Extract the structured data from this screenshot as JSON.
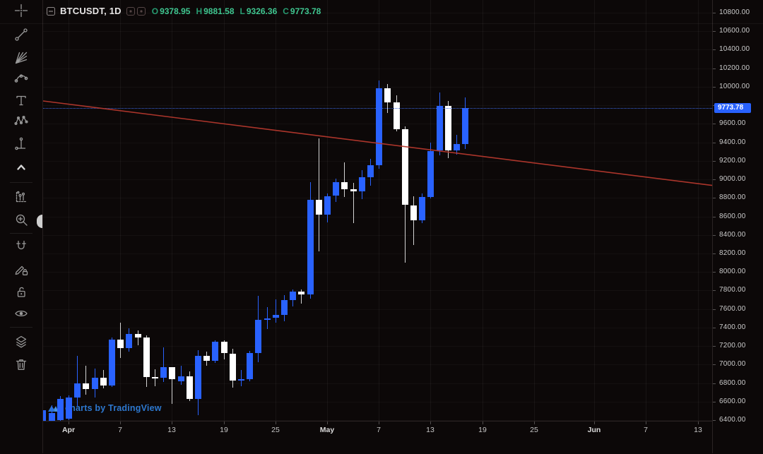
{
  "legend": {
    "symbol_title": "BTCUSDT, 1D",
    "ohlc": {
      "o_label": "O",
      "o": "9378.95",
      "h_label": "H",
      "h": "9881.58",
      "l_label": "L",
      "l": "9326.36",
      "c_label": "C",
      "c": "9773.78"
    }
  },
  "watermark_text": "charts by TradingView",
  "colors": {
    "background": "#0c0808",
    "up_candle": "#2962ff",
    "down_candle": "#ffffff",
    "trend_line": "#b5382d",
    "last_price_line": "#2962ff",
    "last_price_label_bg": "#2962ff",
    "ohlc_green": "#3fc690",
    "axis_text": "#cbcbcb",
    "watermark_blue": "#2d78cf"
  },
  "price_axis": {
    "max": 10800,
    "min": 6400,
    "step": 200,
    "tick_format": "0.00",
    "hidden_label": 9800,
    "last_price_label": "9773.78"
  },
  "time_axis": {
    "ticks": [
      {
        "label": "Apr",
        "day": 0,
        "month": true
      },
      {
        "label": "7",
        "day": 6,
        "month": false
      },
      {
        "label": "13",
        "day": 12,
        "month": false
      },
      {
        "label": "19",
        "day": 18,
        "month": false
      },
      {
        "label": "25",
        "day": 24,
        "month": false
      },
      {
        "label": "May",
        "day": 30,
        "month": true
      },
      {
        "label": "7",
        "day": 36,
        "month": false
      },
      {
        "label": "13",
        "day": 42,
        "month": false
      },
      {
        "label": "19",
        "day": 48,
        "month": false
      },
      {
        "label": "25",
        "day": 54,
        "month": false
      },
      {
        "label": "Jun",
        "day": 61,
        "month": true
      },
      {
        "label": "7",
        "day": 67,
        "month": false
      },
      {
        "label": "13",
        "day": 73,
        "month": false
      }
    ]
  },
  "overlays": {
    "trend_line": {
      "price_at_left_edge": 9847,
      "price_at_right_edge": 8935,
      "color": "#b5382d"
    },
    "last_price_line": {
      "price": 9773.78,
      "style": "dotted",
      "color": "#2962ff"
    }
  },
  "toolbar": {
    "tools": [
      "crosshair",
      "trend-line",
      "gann-fan",
      "curve",
      "text",
      "xabcd-pattern",
      "date-price-range",
      "collapse-toolbar",
      "bars-pattern",
      "zoom-in",
      "magnet",
      "drawing-lock",
      "lock-all",
      "hide-all",
      "object-tree",
      "remove-all"
    ]
  },
  "chart_data": {
    "type": "candlestick",
    "symbol": "BTCUSDT",
    "interval": "1D",
    "title": "BTCUSDT, 1D",
    "y_range": [
      6400,
      10800
    ],
    "grid": {
      "vertical": true,
      "horizontal": true
    },
    "x_axis_ticks": [
      "Apr",
      "7",
      "13",
      "19",
      "25",
      "May",
      "7",
      "13",
      "19",
      "25",
      "Jun",
      "7",
      "13"
    ],
    "days_before_apr1": 3,
    "columns": [
      "date",
      "open",
      "high",
      "low",
      "close"
    ],
    "candles": [
      [
        "Mar 29",
        6380,
        6540,
        6290,
        6510
      ],
      [
        "Mar 30",
        6320,
        6560,
        6250,
        6480
      ],
      [
        "Mar 31",
        6400,
        6660,
        6350,
        6630
      ],
      [
        "Apr 1",
        6412,
        6671,
        6403,
        6642
      ],
      [
        "Apr 2",
        6642,
        7095,
        6555,
        6794
      ],
      [
        "Apr 3",
        6794,
        6987,
        6673,
        6733
      ],
      [
        "Apr 4",
        6733,
        6958,
        6641,
        6859
      ],
      [
        "Apr 5",
        6859,
        6938,
        6740,
        6772
      ],
      [
        "Apr 6",
        6772,
        7292,
        6761,
        7271
      ],
      [
        "Apr 7",
        7271,
        7450,
        7072,
        7176
      ],
      [
        "Apr 8",
        7176,
        7394,
        7136,
        7334
      ],
      [
        "Apr 9",
        7334,
        7371,
        7212,
        7294
      ],
      [
        "Apr 10",
        7294,
        7316,
        6756,
        6865
      ],
      [
        "Apr 11",
        6865,
        6952,
        6766,
        6858
      ],
      [
        "Apr 12",
        6858,
        7188,
        6808,
        6971
      ],
      [
        "Apr 13",
        6971,
        6972,
        6575,
        6845
      ],
      [
        "Apr 14",
        6820,
        6985,
        6780,
        6870
      ],
      [
        "Apr 15",
        6870,
        6930,
        6603,
        6628
      ],
      [
        "Apr 16",
        6628,
        7156,
        6456,
        7096
      ],
      [
        "Apr 17",
        7096,
        7140,
        6990,
        7037
      ],
      [
        "Apr 18",
        7037,
        7260,
        7016,
        7247
      ],
      [
        "Apr 19",
        7247,
        7262,
        7058,
        7121
      ],
      [
        "Apr 20",
        7121,
        7173,
        6750,
        6826
      ],
      [
        "Apr 21",
        6826,
        6940,
        6762,
        6841
      ],
      [
        "Apr 22",
        6841,
        7148,
        6817,
        7125
      ],
      [
        "Apr 23",
        7125,
        7742,
        7023,
        7482
      ],
      [
        "Apr 24",
        7482,
        7620,
        7385,
        7502
      ],
      [
        "Apr 25",
        7502,
        7705,
        7450,
        7538
      ],
      [
        "Apr 26",
        7538,
        7750,
        7468,
        7693
      ],
      [
        "Apr 27",
        7693,
        7808,
        7624,
        7789
      ],
      [
        "Apr 28",
        7789,
        7813,
        7660,
        7756
      ],
      [
        "Apr 29",
        7756,
        8972,
        7710,
        8778
      ],
      [
        "Apr 30",
        8778,
        9440,
        8220,
        8620
      ],
      [
        "May 1",
        8620,
        8850,
        8533,
        8821
      ],
      [
        "May 2",
        8821,
        9010,
        8755,
        8973
      ],
      [
        "May 3",
        8973,
        9187,
        8810,
        8894
      ],
      [
        "May 4",
        8894,
        8960,
        8526,
        8870
      ],
      [
        "May 5",
        8870,
        9100,
        8790,
        9021
      ],
      [
        "May 6",
        9021,
        9225,
        8933,
        9151
      ],
      [
        "May 7",
        9151,
        10067,
        9111,
        9987
      ],
      [
        "May 8",
        9987,
        10030,
        9720,
        9830
      ],
      [
        "May 9",
        9830,
        9910,
        9521,
        9539
      ],
      [
        "May 10",
        9539,
        9574,
        8101,
        8722
      ],
      [
        "May 11",
        8722,
        8815,
        8288,
        8561
      ],
      [
        "May 12",
        8561,
        8850,
        8528,
        8810
      ],
      [
        "May 13",
        8810,
        9398,
        8793,
        9309
      ],
      [
        "May 14",
        9309,
        9939,
        9256,
        9791
      ],
      [
        "May 15",
        9791,
        9845,
        9231,
        9316
      ],
      [
        "May 16",
        9316,
        9480,
        9266,
        9381
      ],
      [
        "May 17",
        9378.95,
        9881.58,
        9326.36,
        9773.78
      ]
    ]
  }
}
